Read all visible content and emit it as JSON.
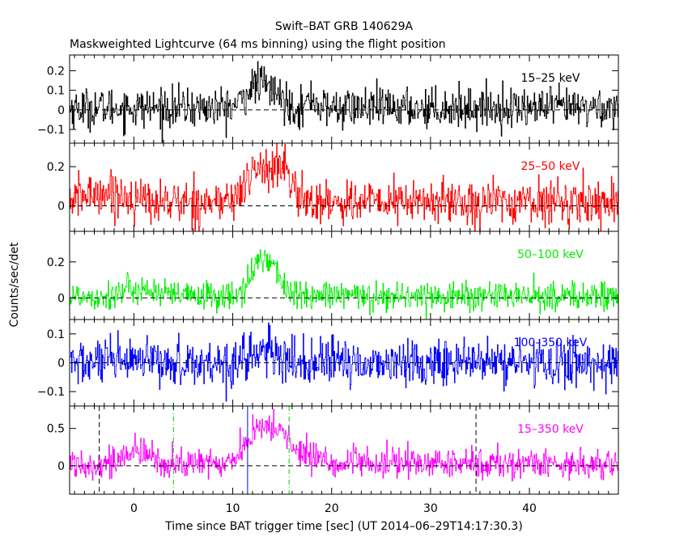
{
  "chart_data": {
    "type": "line",
    "title": "Swift–BAT GRB 140629A",
    "subtitle": "Maskweighted Lightcurve (64 ms binning) using the flight position",
    "xlabel": "Time since BAT trigger time [sec] (UT 2014–06–29T14:17:30.3)",
    "ylabel": "Counts/sec/det",
    "xlim": [
      -6.5,
      49
    ],
    "x_ticks": [
      0,
      10,
      20,
      30,
      40
    ],
    "x_tick_labels": [
      "0",
      "10",
      "20",
      "30",
      "40"
    ],
    "bin_seconds": 0.064,
    "panels": [
      {
        "name": "15–25 keV",
        "color": "#000000",
        "ylim": [
          -0.17,
          0.28
        ],
        "ticks": [
          -0.1,
          0,
          0.1,
          0.2
        ],
        "tick_labels": [
          "−0.1",
          "0",
          "0.1",
          "0.2"
        ],
        "noise": 0.05,
        "baseline": 0.01,
        "pulses": [
          [
            12.2,
            0.09,
            1.0
          ],
          [
            13.8,
            0.07,
            1.2
          ],
          [
            18.0,
            0.05,
            0.4
          ]
        ]
      },
      {
        "name": "25–50 keV",
        "color": "#ff0000",
        "ylim": [
          -0.13,
          0.32
        ],
        "ticks": [
          0,
          0.2
        ],
        "tick_labels": [
          "0",
          "0.2"
        ],
        "noise": 0.055,
        "baseline": 0.02,
        "pulses": [
          [
            12.8,
            0.18,
            1.3
          ],
          [
            15.2,
            0.14,
            0.8
          ],
          [
            -3.0,
            0.05,
            2.0
          ]
        ]
      },
      {
        "name": "50–100 keV",
        "color": "#00ee00",
        "ylim": [
          -0.12,
          0.37
        ],
        "ticks": [
          0,
          0.2
        ],
        "tick_labels": [
          "0",
          "0.2"
        ],
        "noise": 0.04,
        "baseline": 0.01,
        "pulses": [
          [
            12.8,
            0.2,
            0.9
          ],
          [
            14.3,
            0.1,
            0.8
          ],
          [
            0.5,
            0.04,
            1.5
          ]
        ]
      },
      {
        "name": "100–350 keV",
        "color": "#0000ff",
        "ylim": [
          -0.15,
          0.15
        ],
        "ticks": [
          -0.1,
          0,
          0.1
        ],
        "tick_labels": [
          "−0.1",
          "0",
          "0.1"
        ],
        "noise": 0.04,
        "baseline": 0.0,
        "pulses": [
          [
            12.8,
            0.04,
            1.2
          ]
        ]
      },
      {
        "name": "15–350 keV",
        "color": "#ff00ff",
        "ylim": [
          -0.38,
          0.8
        ],
        "ticks": [
          0,
          0.5
        ],
        "tick_labels": [
          "0",
          "0.5"
        ],
        "noise": 0.1,
        "baseline": 0.03,
        "pulses": [
          [
            12.6,
            0.45,
            1.3
          ],
          [
            14.9,
            0.35,
            0.9
          ],
          [
            0.3,
            0.15,
            1.2
          ],
          [
            17.5,
            0.12,
            1.2
          ]
        ]
      }
    ],
    "vertical_markers": [
      {
        "x": -3.5,
        "color": "#000000",
        "style": "dashed"
      },
      {
        "x": 4.0,
        "color": "#00cc00",
        "style": "dashdot"
      },
      {
        "x": 11.5,
        "color": "#0000ff",
        "style": "solid"
      },
      {
        "x": 15.7,
        "color": "#00cc00",
        "style": "dashdot"
      },
      {
        "x": 34.6,
        "color": "#000000",
        "style": "dashed"
      }
    ]
  }
}
